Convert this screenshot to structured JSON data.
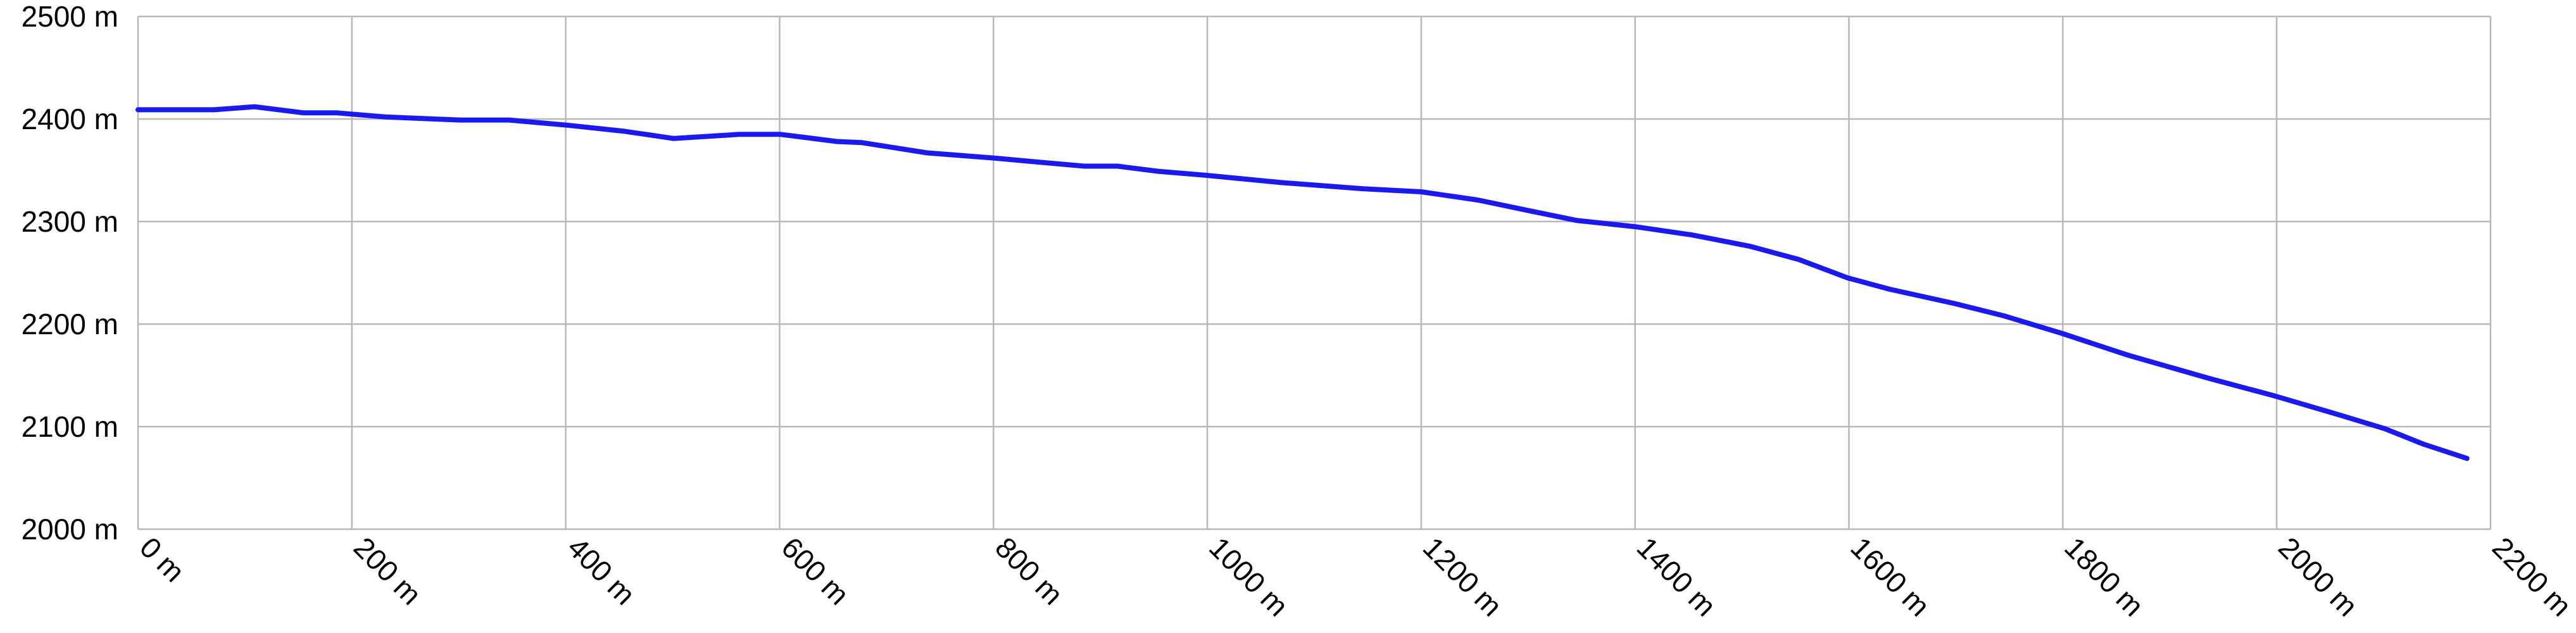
{
  "chart_data": {
    "type": "line",
    "x": [
      0,
      71,
      109,
      155,
      186,
      232,
      301,
      347,
      401,
      455,
      501,
      562,
      601,
      654,
      677,
      738,
      800,
      831,
      885,
      916,
      954,
      1000,
      1069,
      1146,
      1200,
      1253,
      1299,
      1346,
      1400,
      1453,
      1507,
      1553,
      1599,
      1638,
      1699,
      1745,
      1799,
      1860,
      1937,
      1998,
      2060,
      2101,
      2137,
      2178
    ],
    "values": [
      2409,
      2409,
      2412,
      2406,
      2406,
      2402,
      2399,
      2399,
      2394,
      2388,
      2381,
      2385,
      2385,
      2378,
      2377,
      2367,
      2362,
      2359,
      2354,
      2354,
      2349,
      2345,
      2338,
      2332,
      2329,
      2321,
      2311,
      2301,
      2295,
      2287,
      2276,
      2263,
      2245,
      2234,
      2220,
      2208,
      2191,
      2170,
      2147,
      2130,
      2111,
      2098,
      2083,
      2069
    ],
    "color": "#1a1aee",
    "xlim": [
      0,
      2200
    ],
    "ylim": [
      2000,
      2500
    ],
    "xticks": [
      {
        "value": 0,
        "label": "0 m"
      },
      {
        "value": 200,
        "label": "200 m"
      },
      {
        "value": 400,
        "label": "400 m"
      },
      {
        "value": 600,
        "label": "600 m"
      },
      {
        "value": 800,
        "label": "800 m"
      },
      {
        "value": 1000,
        "label": "1000 m"
      },
      {
        "value": 1200,
        "label": "1200 m"
      },
      {
        "value": 1400,
        "label": "1400 m"
      },
      {
        "value": 1600,
        "label": "1600 m"
      },
      {
        "value": 1800,
        "label": "1800 m"
      },
      {
        "value": 2000,
        "label": "2000 m"
      },
      {
        "value": 2200,
        "label": "2200 m"
      }
    ],
    "yticks": [
      {
        "value": 2000,
        "label": "2000 m"
      },
      {
        "value": 2100,
        "label": "2100 m"
      },
      {
        "value": 2200,
        "label": "2200 m"
      },
      {
        "value": 2300,
        "label": "2300 m"
      },
      {
        "value": 2400,
        "label": "2400 m"
      },
      {
        "value": 2500,
        "label": "2500 m"
      }
    ],
    "grid": true
  }
}
